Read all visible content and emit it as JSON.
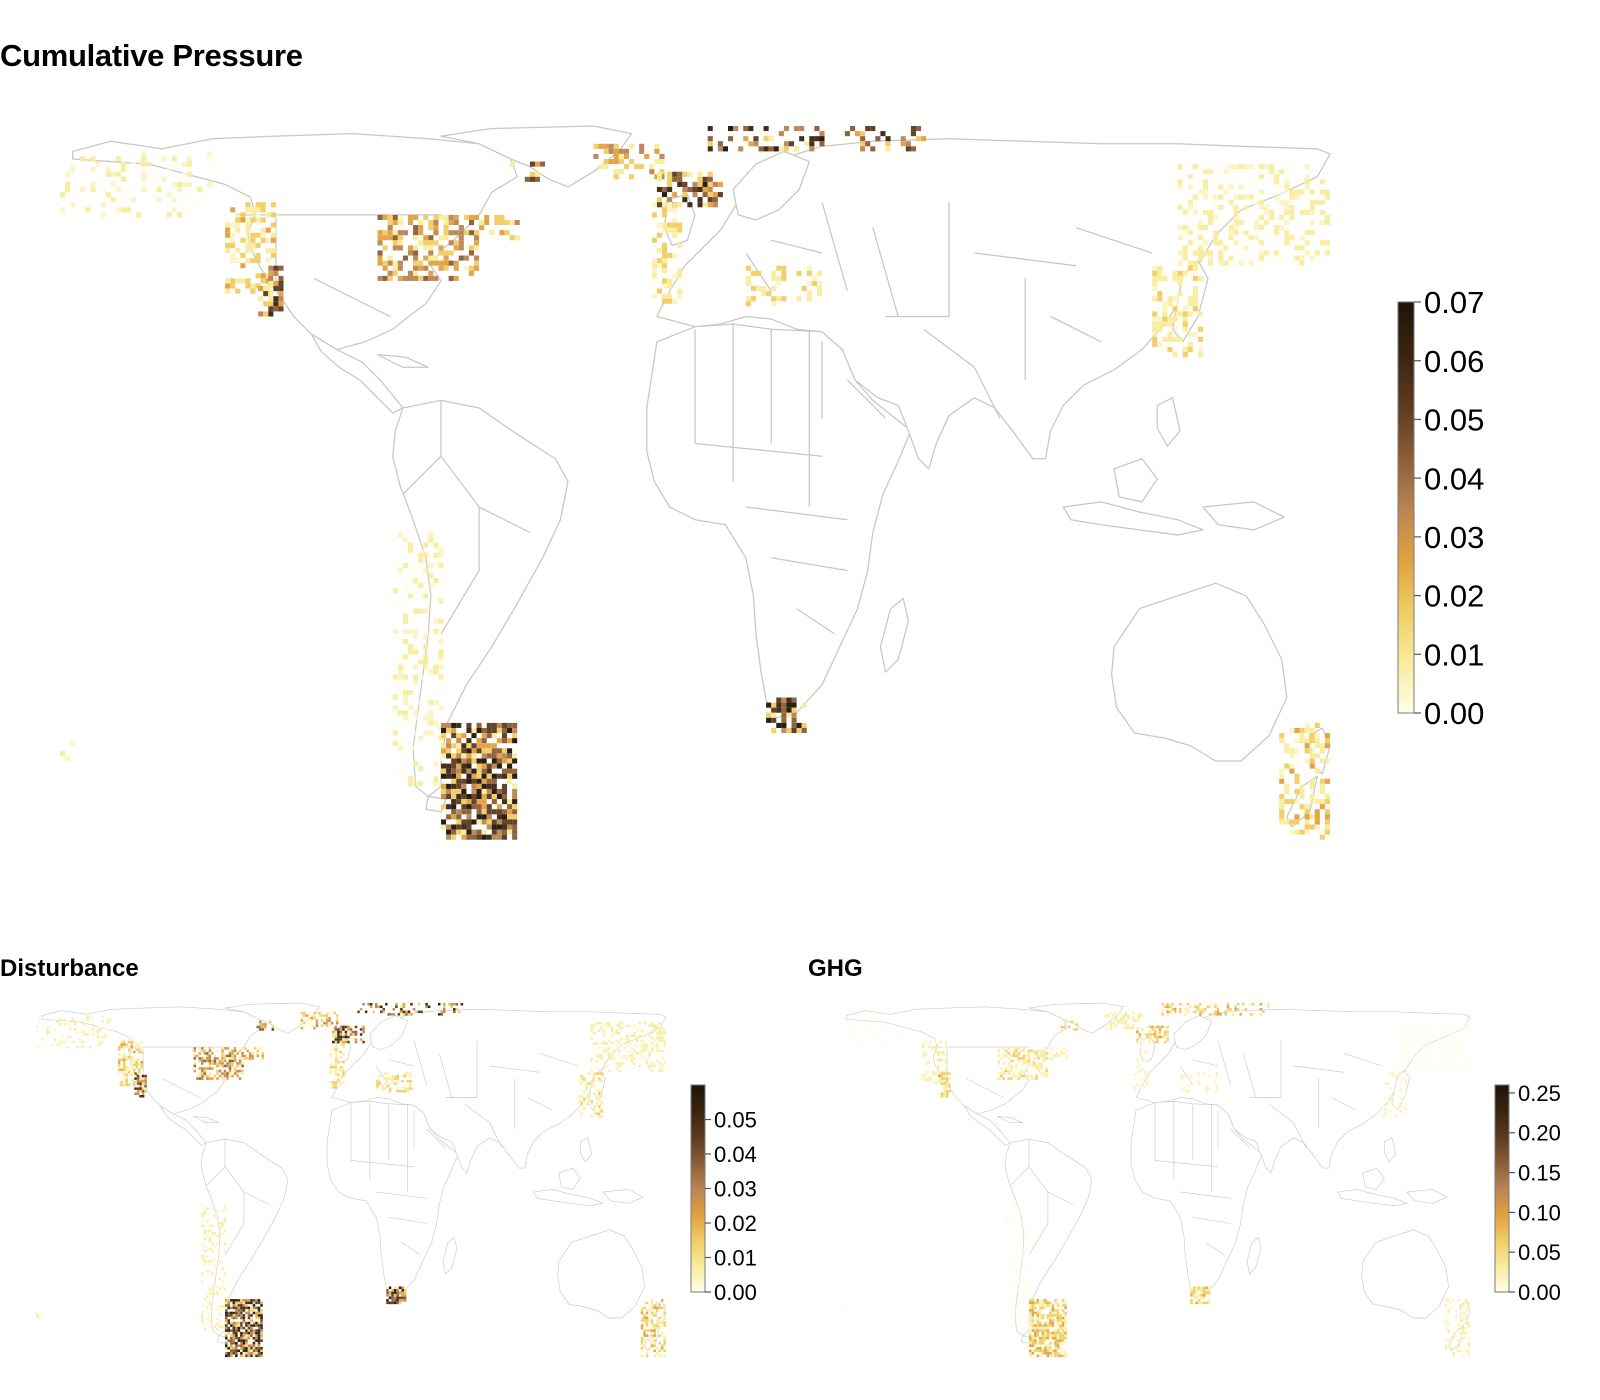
{
  "titles": {
    "main": "Cumulative Pressure",
    "disturbance": "Disturbance",
    "ghg": "GHG"
  },
  "palette": [
    "#fffde8",
    "#f8ec9c",
    "#f0cc62",
    "#e0a040",
    "#b98454",
    "#8a5c36",
    "#5a3a20",
    "#3a2410",
    "#1e1408"
  ],
  "border_color": "#c8c8c2",
  "panels": [
    {
      "id": "cumulative",
      "legend": {
        "min": 0,
        "max": 0.07,
        "ticks": [
          "0.00",
          "0.01",
          "0.02",
          "0.03",
          "0.04",
          "0.05",
          "0.06",
          "0.07"
        ],
        "tick_values": [
          0,
          0.01,
          0.02,
          0.03,
          0.04,
          0.05,
          0.06,
          0.07
        ]
      }
    },
    {
      "id": "disturbance",
      "legend": {
        "min": 0,
        "max": 0.06,
        "ticks": [
          "0.00",
          "0.01",
          "0.02",
          "0.03",
          "0.04",
          "0.05"
        ],
        "tick_values": [
          0,
          0.01,
          0.02,
          0.03,
          0.04,
          0.05
        ]
      }
    },
    {
      "id": "ghg",
      "legend": {
        "min": 0,
        "max": 0.26,
        "ticks": [
          "0.00",
          "0.05",
          "0.10",
          "0.15",
          "0.20",
          "0.25"
        ],
        "tick_values": [
          0,
          0.05,
          0.1,
          0.15,
          0.2,
          0.25
        ]
      }
    }
  ]
}
